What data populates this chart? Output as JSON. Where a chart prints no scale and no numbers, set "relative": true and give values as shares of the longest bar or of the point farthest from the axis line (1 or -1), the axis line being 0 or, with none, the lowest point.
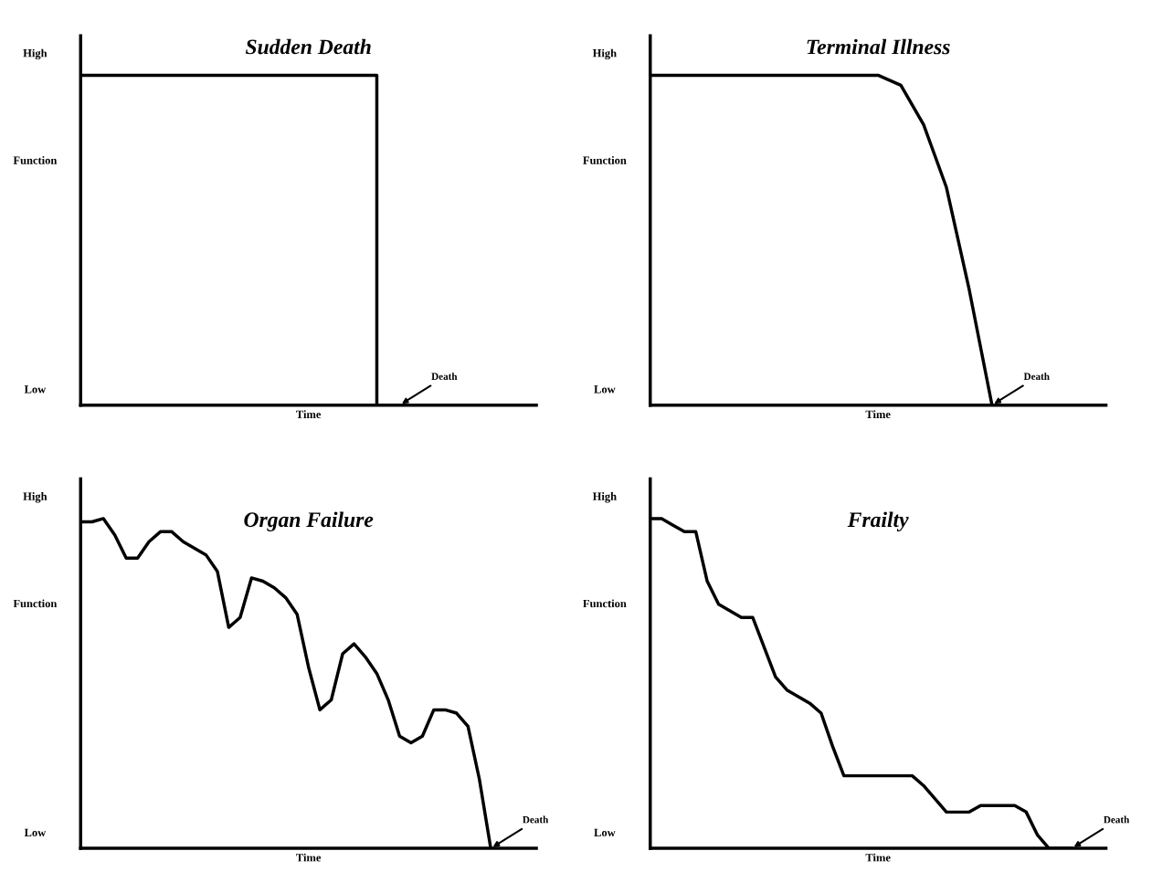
{
  "chart_data": [
    {
      "type": "step",
      "title": "Sudden Death",
      "xlabel": "Time",
      "ylabel": "Function",
      "relative": true,
      "tick_labels": false,
      "categories": [
        null,
        null,
        null,
        null,
        null,
        null,
        null,
        null,
        null,
        null,
        null,
        null,
        null,
        null,
        null,
        null,
        null,
        null,
        null,
        null,
        null
      ],
      "series": [
        {
          "color": "#000000",
          "values": [
            1,
            1,
            1,
            1,
            1,
            1,
            1,
            1,
            1,
            1,
            1,
            1,
            1,
            1,
            0,
            null,
            null,
            null,
            null,
            null,
            null
          ]
        }
      ],
      "annotations": [
        "High",
        "Low",
        "Death"
      ]
    },
    {
      "type": "line",
      "title": "Terminal Illness",
      "xlabel": "Time",
      "ylabel": "Function",
      "relative": true,
      "tick_labels": false,
      "categories": [
        null,
        null,
        null,
        null,
        null,
        null,
        null,
        null,
        null,
        null,
        null,
        null,
        null,
        null,
        null,
        null,
        null,
        null,
        null,
        null,
        null
      ],
      "series": [
        {
          "color": "#000000",
          "values": [
            1,
            1,
            1,
            1,
            1,
            1,
            1,
            1,
            1,
            1,
            1,
            0.97,
            0.85,
            0.66,
            0.35,
            0,
            null,
            null,
            null,
            null,
            null
          ]
        }
      ],
      "annotations": [
        "High",
        "Low",
        "Death"
      ]
    },
    {
      "type": "line",
      "title": "Organ Failure",
      "xlabel": "Time",
      "ylabel": "Function",
      "relative": true,
      "tick_labels": false,
      "categories": [
        null,
        null,
        null,
        null,
        null,
        null,
        null,
        null,
        null,
        null,
        null,
        null,
        null,
        null,
        null,
        null,
        null,
        null,
        null,
        null,
        null,
        null,
        null,
        null,
        null,
        null,
        null,
        null,
        null,
        null,
        null,
        null,
        null,
        null,
        null,
        null,
        null,
        null,
        null,
        null,
        null
      ],
      "series": [
        {
          "color": "#000000",
          "values": [
            0.99,
            0.99,
            1,
            0.95,
            0.88,
            0.88,
            0.93,
            0.96,
            0.96,
            0.93,
            0.91,
            0.89,
            0.84,
            0.67,
            0.7,
            0.82,
            0.81,
            0.79,
            0.76,
            0.71,
            0.55,
            0.42,
            0.45,
            0.59,
            0.62,
            0.58,
            0.53,
            0.45,
            0.34,
            0.32,
            0.34,
            0.42,
            0.42,
            0.41,
            0.37,
            0.21,
            0,
            null,
            null,
            null,
            null
          ]
        }
      ],
      "annotations": [
        "High",
        "Low",
        "Death"
      ]
    },
    {
      "type": "line",
      "title": "Frailty",
      "xlabel": "Time",
      "ylabel": "Function",
      "relative": true,
      "tick_labels": false,
      "categories": [
        null,
        null,
        null,
        null,
        null,
        null,
        null,
        null,
        null,
        null,
        null,
        null,
        null,
        null,
        null,
        null,
        null,
        null,
        null,
        null,
        null,
        null,
        null,
        null,
        null,
        null,
        null,
        null,
        null,
        null,
        null,
        null,
        null,
        null,
        null,
        null,
        null,
        null,
        null,
        null,
        null
      ],
      "series": [
        {
          "color": "#000000",
          "values": [
            1,
            1,
            0.98,
            0.96,
            0.96,
            0.81,
            0.74,
            0.72,
            0.7,
            0.7,
            0.61,
            0.52,
            0.48,
            0.46,
            0.44,
            0.41,
            0.31,
            0.22,
            0.22,
            0.22,
            0.22,
            0.22,
            0.22,
            0.22,
            0.19,
            0.15,
            0.11,
            0.11,
            0.11,
            0.13,
            0.13,
            0.13,
            0.13,
            0.11,
            0.04,
            0,
            0,
            0,
            null,
            null,
            null
          ]
        }
      ],
      "annotations": [
        "High",
        "Low",
        "Death"
      ]
    }
  ]
}
